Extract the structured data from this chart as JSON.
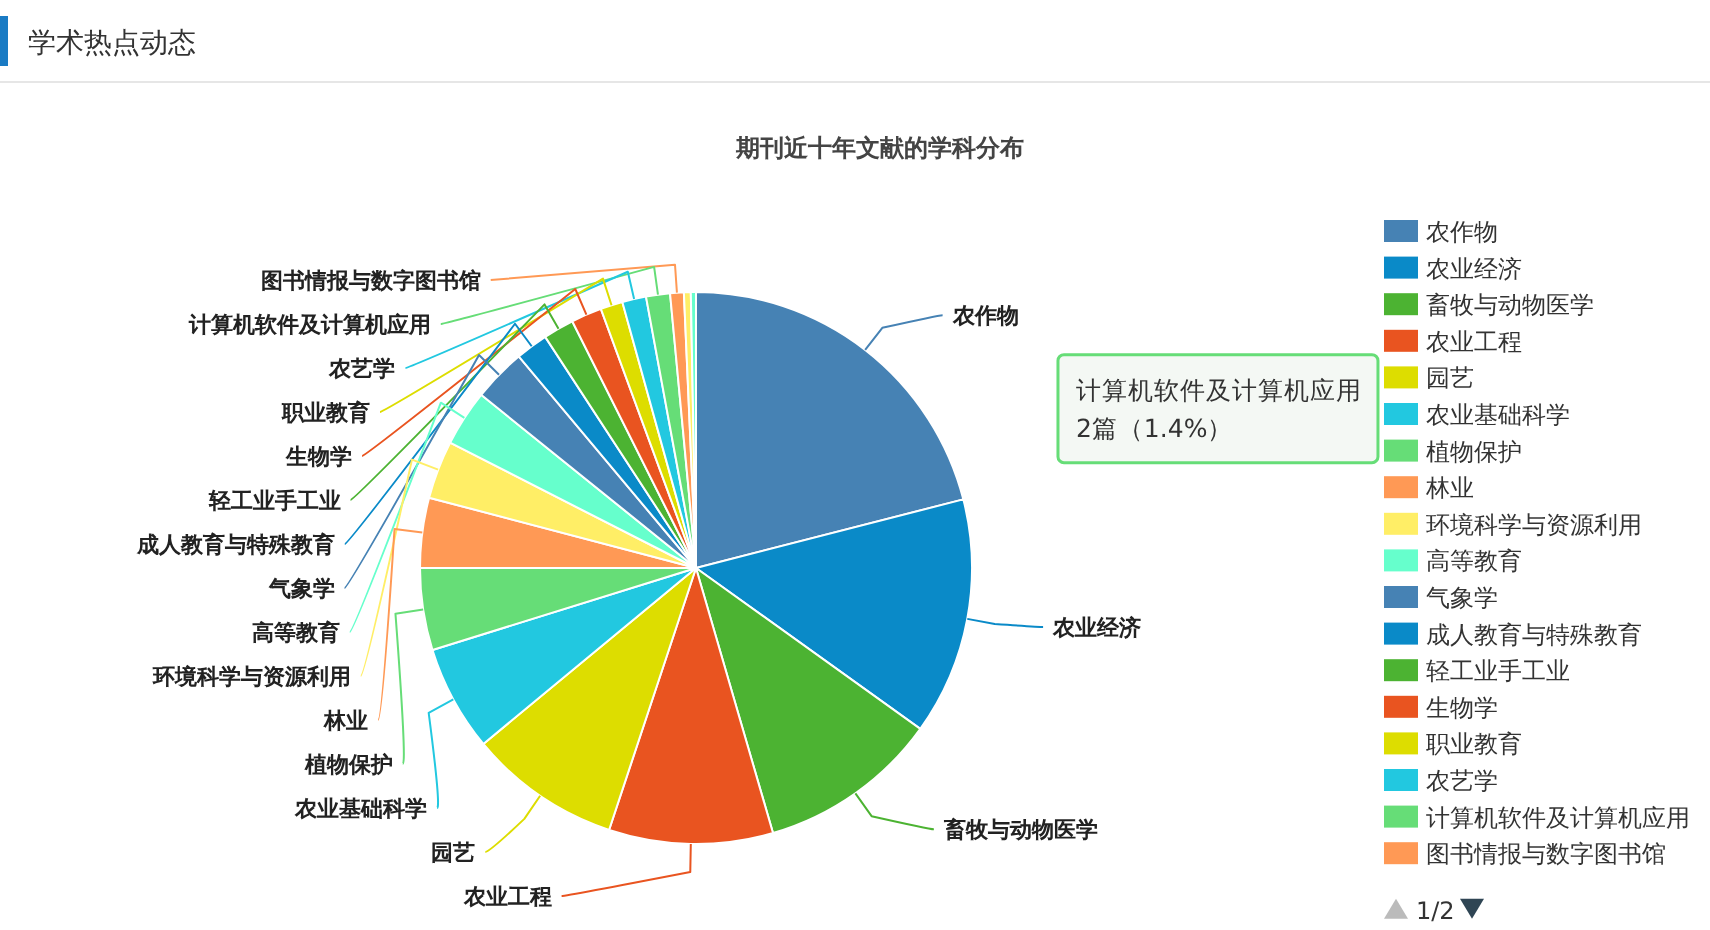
{
  "chart_data": {
    "type": "pie",
    "title": "期刊近十年文献的学科分布",
    "categories": [
      "农作物",
      "农业经济",
      "畜牧与动物医学",
      "农业工程",
      "园艺",
      "农业基础科学",
      "植物保护",
      "林业",
      "环境科学与资源利用",
      "高等教育",
      "气象学",
      "成人教育与特殊教育",
      "轻工业手工业",
      "生物学",
      "职业教育",
      "农艺学",
      "计算机软件及计算机应用",
      "图书情报与数字图书馆",
      null,
      null
    ],
    "values": [
      21.0,
      13.9,
      10.6,
      9.6,
      8.9,
      6.2,
      4.8,
      4.1,
      3.4,
      3.3,
      3.1,
      1.9,
      1.8,
      1.8,
      1.3,
      1.4,
      1.4,
      0.8,
      0.4,
      0.3
    ],
    "colors": [
      "#4682b4",
      "#0a8ac8",
      "#4cb332",
      "#e95420",
      "#dddd00",
      "#22c8e0",
      "#66dd77",
      "#ff9955",
      "#ffee66",
      "#66ffcc",
      "#4682b4",
      "#0a8ac8",
      "#4cb332",
      "#e95420",
      "#dddd00",
      "#22c8e0",
      "#66dd77",
      "#ff9955",
      "#ffee66",
      "#66ffcc"
    ],
    "legend": "right",
    "annotations": [
      "学术热点动态",
      "1/2",
      {
        "text": "计算机软件及计算机应用\n2篇（1.4%）",
        "x": "计算机软件及计算机应用"
      }
    ]
  }
}
